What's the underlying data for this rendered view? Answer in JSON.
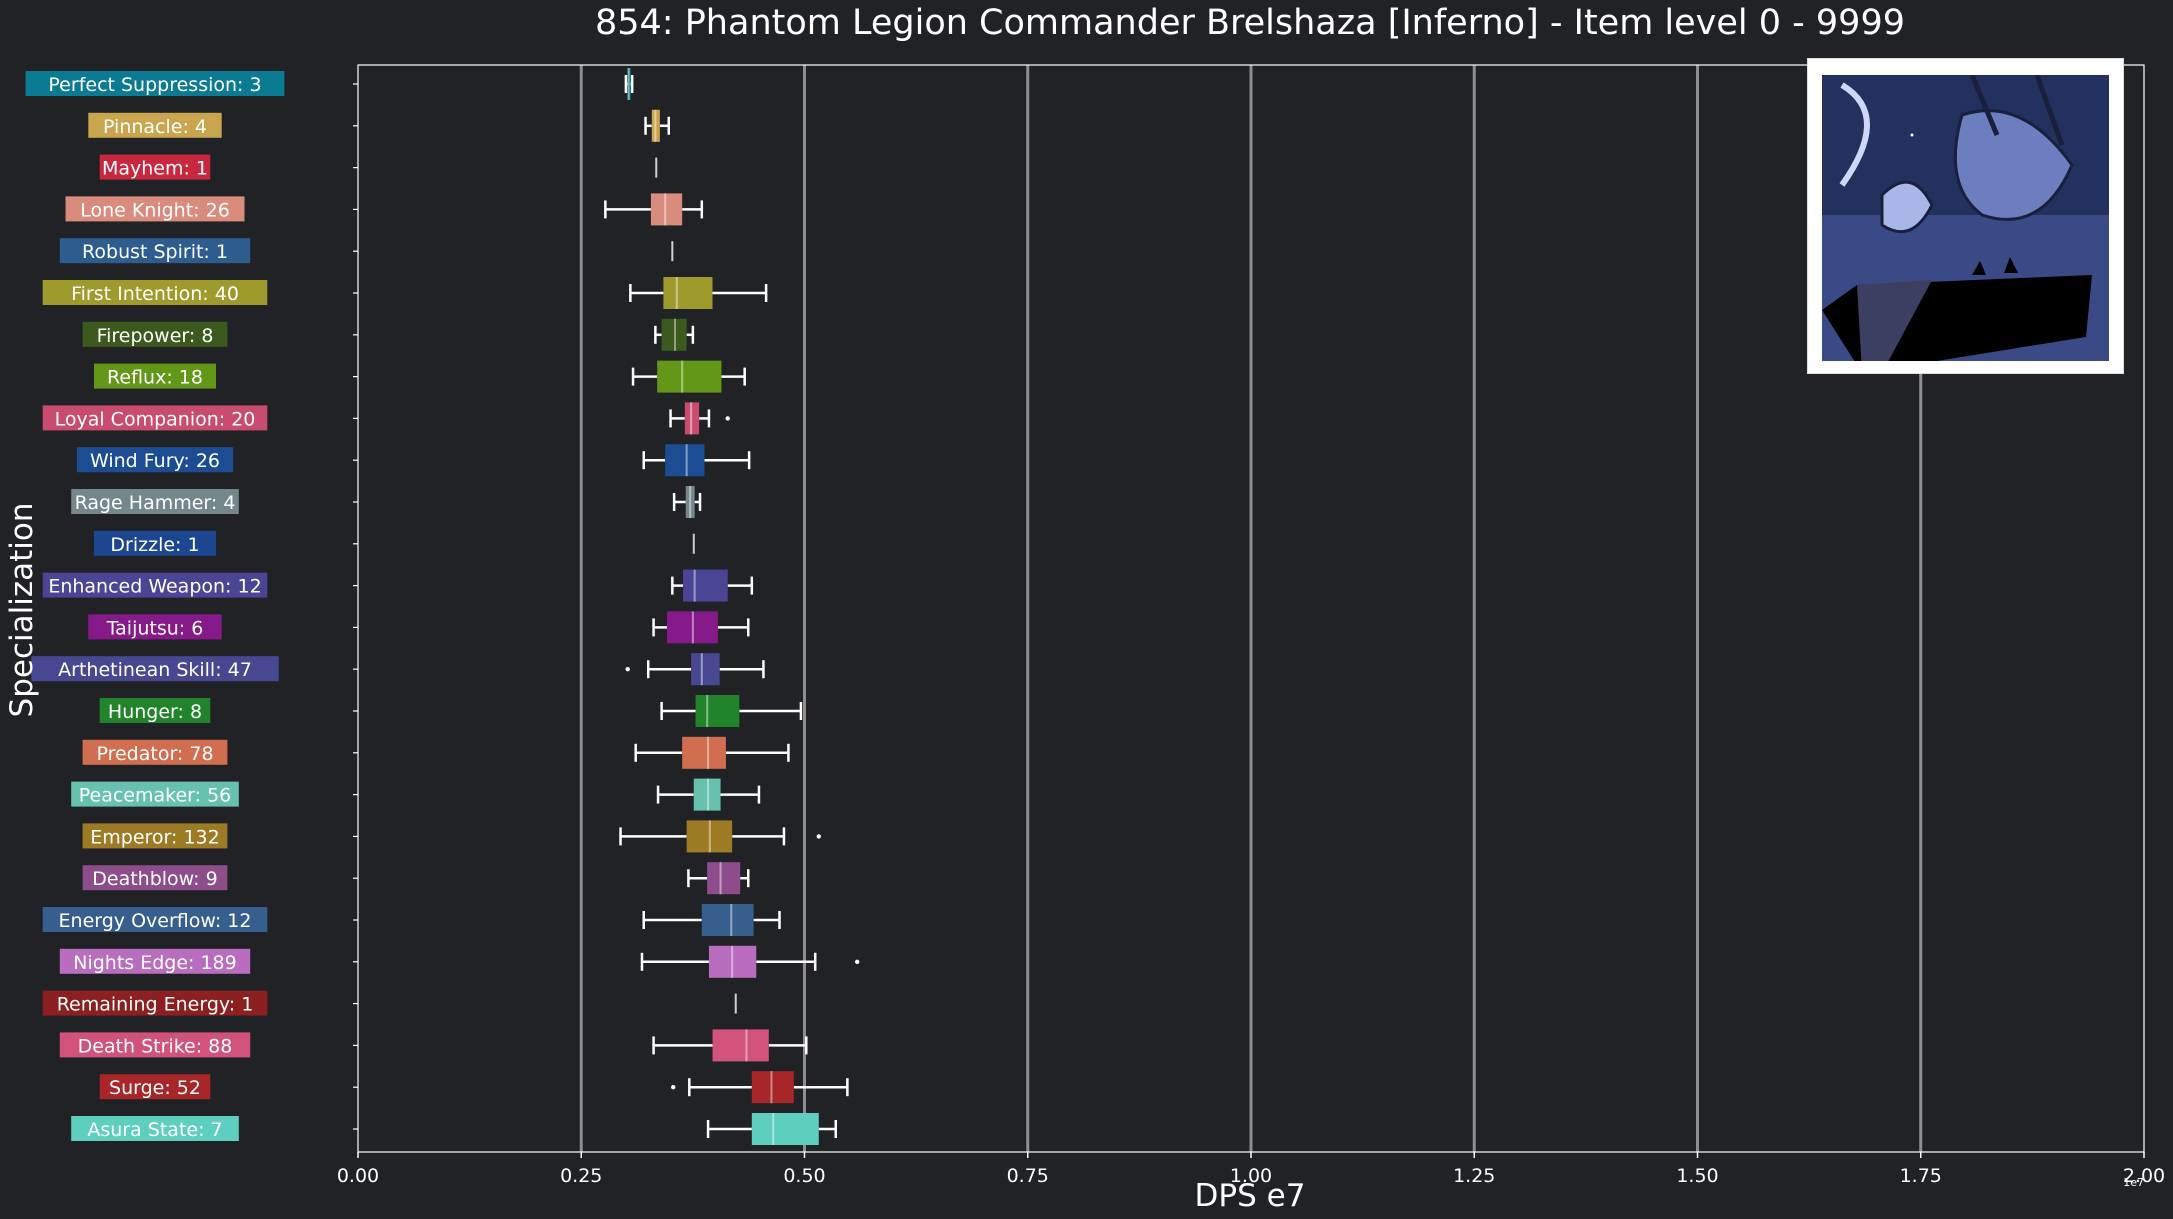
{
  "chart_data": {
    "type": "box",
    "title": "854: Phantom Legion Commander Brelshaza [Inferno] - Item level 0 - 9999",
    "xlabel": "DPS e7",
    "ylabel": "Specialization",
    "offset_label": "1e7",
    "xlim": [
      0,
      2.0
    ],
    "xticks": [
      "0.00",
      "0.25",
      "0.50",
      "0.75",
      "1.00",
      "1.25",
      "1.50",
      "1.75",
      "2.00"
    ],
    "grid": "vertical",
    "series": [
      {
        "label": "Perfect Suppression: 3",
        "color": "#0b7b94",
        "min": 0.3,
        "q1": 0.302,
        "median": 0.303,
        "q3": 0.305,
        "max": 0.307,
        "outliers": []
      },
      {
        "label": "Pinnacle: 4",
        "color": "#c9a54d",
        "min": 0.322,
        "q1": 0.329,
        "median": 0.333,
        "q3": 0.338,
        "max": 0.348,
        "outliers": []
      },
      {
        "label": "Mayhem: 1",
        "color": "#c9273f",
        "min": 0.334,
        "q1": 0.334,
        "median": 0.334,
        "q3": 0.334,
        "max": 0.334,
        "outliers": []
      },
      {
        "label": "Lone Knight: 26",
        "color": "#d98b7e",
        "min": 0.277,
        "q1": 0.328,
        "median": 0.344,
        "q3": 0.363,
        "max": 0.385,
        "outliers": []
      },
      {
        "label": "Robust Spirit: 1",
        "color": "#2d5c8e",
        "min": 0.352,
        "q1": 0.352,
        "median": 0.352,
        "q3": 0.352,
        "max": 0.352,
        "outliers": []
      },
      {
        "label": "First Intention: 40",
        "color": "#9e9a2c",
        "min": 0.305,
        "q1": 0.342,
        "median": 0.357,
        "q3": 0.397,
        "max": 0.457,
        "outliers": []
      },
      {
        "label": "Firepower: 8",
        "color": "#3c5a1e",
        "min": 0.333,
        "q1": 0.34,
        "median": 0.355,
        "q3": 0.368,
        "max": 0.375,
        "outliers": []
      },
      {
        "label": "Reflux: 18",
        "color": "#629717",
        "min": 0.308,
        "q1": 0.335,
        "median": 0.363,
        "q3": 0.407,
        "max": 0.433,
        "outliers": []
      },
      {
        "label": "Loyal Companion: 20",
        "color": "#c94c6e",
        "min": 0.35,
        "q1": 0.366,
        "median": 0.373,
        "q3": 0.382,
        "max": 0.393,
        "outliers": [
          0.414
        ]
      },
      {
        "label": "Wind Fury: 26",
        "color": "#1c4c93",
        "min": 0.32,
        "q1": 0.344,
        "median": 0.368,
        "q3": 0.388,
        "max": 0.438,
        "outliers": []
      },
      {
        "label": "Rage Hammer: 4",
        "color": "#74878a",
        "min": 0.354,
        "q1": 0.367,
        "median": 0.372,
        "q3": 0.377,
        "max": 0.383,
        "outliers": []
      },
      {
        "label": "Drizzle: 1",
        "color": "#1d4691",
        "min": 0.376,
        "q1": 0.376,
        "median": 0.376,
        "q3": 0.376,
        "max": 0.376,
        "outliers": []
      },
      {
        "label": "Enhanced Weapon: 12",
        "color": "#4a4595",
        "min": 0.352,
        "q1": 0.364,
        "median": 0.377,
        "q3": 0.414,
        "max": 0.441,
        "outliers": []
      },
      {
        "label": "Taijutsu: 6",
        "color": "#871a8a",
        "min": 0.331,
        "q1": 0.346,
        "median": 0.375,
        "q3": 0.403,
        "max": 0.437,
        "outliers": []
      },
      {
        "label": "Arthetinean Skill: 47",
        "color": "#484892",
        "min": 0.325,
        "q1": 0.373,
        "median": 0.385,
        "q3": 0.405,
        "max": 0.454,
        "outliers": [
          0.302
        ]
      },
      {
        "label": "Hunger: 8",
        "color": "#21842a",
        "min": 0.34,
        "q1": 0.378,
        "median": 0.391,
        "q3": 0.427,
        "max": 0.496,
        "outliers": []
      },
      {
        "label": "Predator: 78",
        "color": "#d06e4f",
        "min": 0.311,
        "q1": 0.363,
        "median": 0.392,
        "q3": 0.412,
        "max": 0.482,
        "outliers": []
      },
      {
        "label": "Peacemaker: 56",
        "color": "#66c1ae",
        "min": 0.336,
        "q1": 0.376,
        "median": 0.392,
        "q3": 0.406,
        "max": 0.449,
        "outliers": []
      },
      {
        "label": "Emperor: 132",
        "color": "#9d7b25",
        "min": 0.294,
        "q1": 0.368,
        "median": 0.394,
        "q3": 0.419,
        "max": 0.477,
        "outliers": [
          0.516
        ]
      },
      {
        "label": "Deathblow: 9",
        "color": "#8d4d8b",
        "min": 0.37,
        "q1": 0.391,
        "median": 0.406,
        "q3": 0.428,
        "max": 0.437,
        "outliers": []
      },
      {
        "label": "Energy Overflow: 12",
        "color": "#375f8d",
        "min": 0.32,
        "q1": 0.385,
        "median": 0.418,
        "q3": 0.443,
        "max": 0.472,
        "outliers": []
      },
      {
        "label": "Nights Edge: 189",
        "color": "#b86dbf",
        "min": 0.318,
        "q1": 0.393,
        "median": 0.419,
        "q3": 0.446,
        "max": 0.512,
        "outliers": [
          0.559
        ]
      },
      {
        "label": "Remaining Energy: 1",
        "color": "#8c1f1f",
        "min": 0.423,
        "q1": 0.423,
        "median": 0.423,
        "q3": 0.423,
        "max": 0.423,
        "outliers": []
      },
      {
        "label": "Death Strike: 88",
        "color": "#d1527b",
        "min": 0.331,
        "q1": 0.397,
        "median": 0.435,
        "q3": 0.46,
        "max": 0.502,
        "outliers": []
      },
      {
        "label": "Surge: 52",
        "color": "#a82628",
        "min": 0.371,
        "q1": 0.441,
        "median": 0.463,
        "q3": 0.488,
        "max": 0.548,
        "outliers": [
          0.353
        ]
      },
      {
        "label": "Asura State: 7",
        "color": "#5ecfbf",
        "min": 0.392,
        "q1": 0.441,
        "median": 0.465,
        "q3": 0.516,
        "max": 0.535,
        "outliers": []
      }
    ]
  }
}
